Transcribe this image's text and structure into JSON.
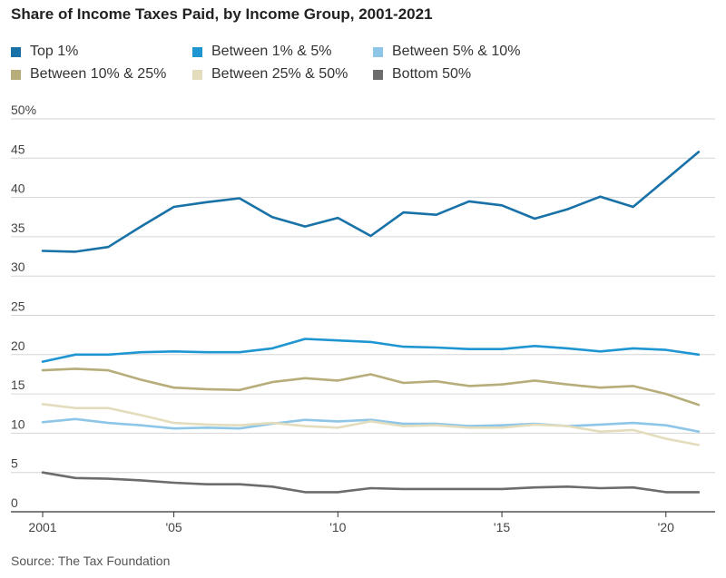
{
  "title": "Share of Income Taxes Paid, by Income Group, 2001-2021",
  "source": "Source: The Tax Foundation",
  "chart_data": {
    "type": "line",
    "title": "Share of Income Taxes Paid, by Income Group, 2001-2021",
    "xlabel": "",
    "ylabel": "",
    "x": [
      2001,
      2002,
      2003,
      2004,
      2005,
      2006,
      2007,
      2008,
      2009,
      2010,
      2011,
      2012,
      2013,
      2014,
      2015,
      2016,
      2017,
      2018,
      2019,
      2020,
      2021
    ],
    "xlim": [
      2001,
      2021.5
    ],
    "ylim": [
      0,
      50
    ],
    "x_ticks": [
      2001,
      2005,
      2010,
      2015,
      2020
    ],
    "x_tick_labels": [
      "2001",
      "'05",
      "'10",
      "'15",
      "'20"
    ],
    "y_ticks": [
      0,
      5,
      10,
      15,
      20,
      25,
      30,
      35,
      40,
      45,
      50
    ],
    "y_tick_labels": [
      "0",
      "5",
      "10",
      "15",
      "20",
      "25",
      "30",
      "35",
      "40",
      "45",
      "50%"
    ],
    "grid": true,
    "legend_position": "top",
    "series": [
      {
        "name": "Top 1%",
        "color": "#1872a8",
        "values": [
          33.2,
          33.1,
          33.7,
          36.3,
          38.8,
          39.4,
          39.9,
          37.5,
          36.3,
          37.4,
          35.1,
          38.1,
          37.8,
          39.5,
          39.0,
          37.3,
          38.5,
          40.1,
          38.8,
          42.3,
          45.8
        ]
      },
      {
        "name": "Between 1% & 5%",
        "color": "#1f96d2",
        "values": [
          19.1,
          20.0,
          20.0,
          20.3,
          20.4,
          20.3,
          20.3,
          20.8,
          22.0,
          21.8,
          21.6,
          21.0,
          20.9,
          20.7,
          20.7,
          21.1,
          20.8,
          20.4,
          20.8,
          20.6,
          20.0
        ]
      },
      {
        "name": "Between 5% & 10%",
        "color": "#8ec6e8",
        "values": [
          11.4,
          11.8,
          11.3,
          11.0,
          10.6,
          10.7,
          10.6,
          11.2,
          11.7,
          11.5,
          11.7,
          11.2,
          11.2,
          10.9,
          11.0,
          11.2,
          10.9,
          11.1,
          11.3,
          11.0,
          10.2
        ]
      },
      {
        "name": "Between 10% & 25%",
        "color": "#b6ad7a",
        "values": [
          18.0,
          18.2,
          18.0,
          16.8,
          15.8,
          15.6,
          15.5,
          16.5,
          17.0,
          16.7,
          17.5,
          16.4,
          16.6,
          16.0,
          16.2,
          16.7,
          16.2,
          15.8,
          16.0,
          15.0,
          13.6
        ]
      },
      {
        "name": "Between 25% & 50%",
        "color": "#e3ddbd",
        "values": [
          13.7,
          13.2,
          13.2,
          12.3,
          11.3,
          11.1,
          11.0,
          11.3,
          10.9,
          10.7,
          11.5,
          10.9,
          11.0,
          10.7,
          10.7,
          11.1,
          10.9,
          10.2,
          10.4,
          9.3,
          8.5
        ]
      },
      {
        "name": "Bottom 50%",
        "color": "#6c6c6c",
        "values": [
          5.0,
          4.3,
          4.2,
          4.0,
          3.7,
          3.5,
          3.5,
          3.2,
          2.5,
          2.5,
          3.0,
          2.9,
          2.9,
          2.9,
          2.9,
          3.1,
          3.2,
          3.0,
          3.1,
          2.5,
          2.5
        ]
      }
    ]
  }
}
